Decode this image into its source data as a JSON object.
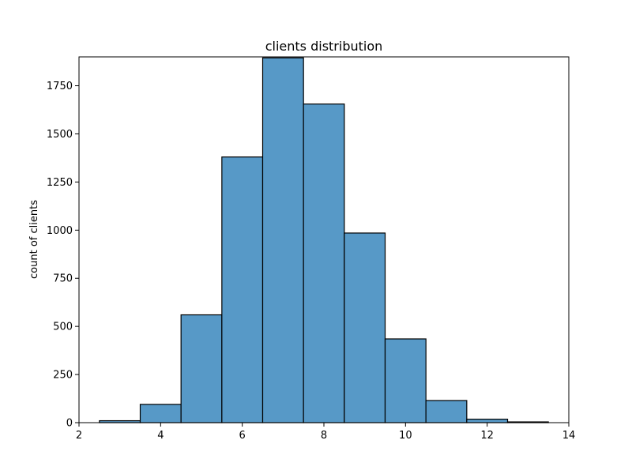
{
  "chart_data": {
    "type": "bar",
    "title": "clients distribution",
    "xlabel": "",
    "ylabel": "count of clients",
    "xlim": [
      2,
      14
    ],
    "ylim": [
      0,
      1900
    ],
    "x_ticks": [
      2,
      4,
      6,
      8,
      10,
      12,
      14
    ],
    "y_ticks": [
      0,
      250,
      500,
      750,
      1000,
      1250,
      1500,
      1750
    ],
    "bins": [
      {
        "x0": 2.5,
        "x1": 3.5,
        "value": 10
      },
      {
        "x0": 3.5,
        "x1": 4.5,
        "value": 95
      },
      {
        "x0": 4.5,
        "x1": 5.5,
        "value": 560
      },
      {
        "x0": 5.5,
        "x1": 6.5,
        "value": 1380
      },
      {
        "x0": 6.5,
        "x1": 7.5,
        "value": 1895
      },
      {
        "x0": 7.5,
        "x1": 8.5,
        "value": 1655
      },
      {
        "x0": 8.5,
        "x1": 9.5,
        "value": 985
      },
      {
        "x0": 9.5,
        "x1": 10.5,
        "value": 435
      },
      {
        "x0": 10.5,
        "x1": 11.5,
        "value": 115
      },
      {
        "x0": 11.5,
        "x1": 12.5,
        "value": 18
      },
      {
        "x0": 12.5,
        "x1": 13.5,
        "value": 4
      }
    ],
    "grid": false,
    "colors": {
      "bar_fill": "#5799c7",
      "bar_edge": "#000000",
      "axis": "#000000",
      "background": "#ffffff"
    }
  }
}
